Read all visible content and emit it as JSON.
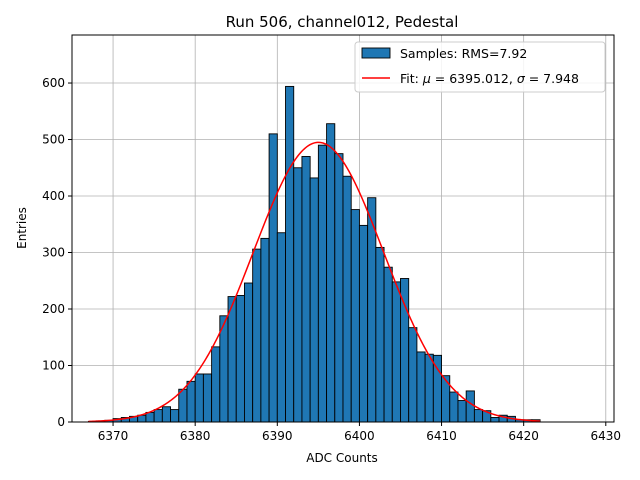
{
  "chart_data": {
    "type": "bar",
    "title": "Run 506, channel012, Pedestal",
    "xlabel": "ADC Counts",
    "ylabel": "Entries",
    "xlim": [
      6365,
      6431
    ],
    "ylim": [
      0,
      685
    ],
    "xticks": [
      6370,
      6380,
      6390,
      6400,
      6410,
      6420,
      6430
    ],
    "yticks": [
      0,
      100,
      200,
      300,
      400,
      500,
      600
    ],
    "grid": true,
    "legend_position": "top-right",
    "colors": {
      "bar": "#1f77b4",
      "edge": "#000000",
      "fit": "#ff0000"
    },
    "histogram": {
      "name": "Samples: RMS=7.92",
      "bin_width": 1,
      "bin_starts": [
        6367,
        6368,
        6369,
        6370,
        6371,
        6372,
        6373,
        6374,
        6375,
        6376,
        6377,
        6378,
        6379,
        6380,
        6381,
        6382,
        6383,
        6384,
        6385,
        6386,
        6387,
        6388,
        6389,
        6390,
        6391,
        6392,
        6393,
        6394,
        6395,
        6396,
        6397,
        6398,
        6399,
        6400,
        6401,
        6402,
        6403,
        6404,
        6405,
        6406,
        6407,
        6408,
        6409,
        6410,
        6411,
        6412,
        6413,
        6414,
        6415,
        6416,
        6417,
        6418,
        6419,
        6420,
        6421
      ],
      "counts": [
        1,
        2,
        3,
        6,
        8,
        10,
        12,
        17,
        22,
        27,
        22,
        58,
        72,
        85,
        85,
        133,
        188,
        222,
        224,
        246,
        306,
        325,
        510,
        335,
        594,
        450,
        470,
        432,
        490,
        528,
        475,
        435,
        376,
        348,
        397,
        309,
        274,
        248,
        254,
        167,
        124,
        120,
        118,
        82,
        53,
        38,
        55,
        22,
        20,
        8,
        12,
        10,
        4,
        4,
        4
      ]
    },
    "fit": {
      "name_prefix": "Fit: ",
      "mu_symbol": "μ",
      "sigma_symbol": "σ",
      "mu_text": " = 6395.012, ",
      "sigma_text": " = 7.948",
      "mu": 6395.012,
      "sigma": 7.948,
      "amplitude": 495,
      "x_range": [
        6367,
        6422
      ]
    }
  }
}
